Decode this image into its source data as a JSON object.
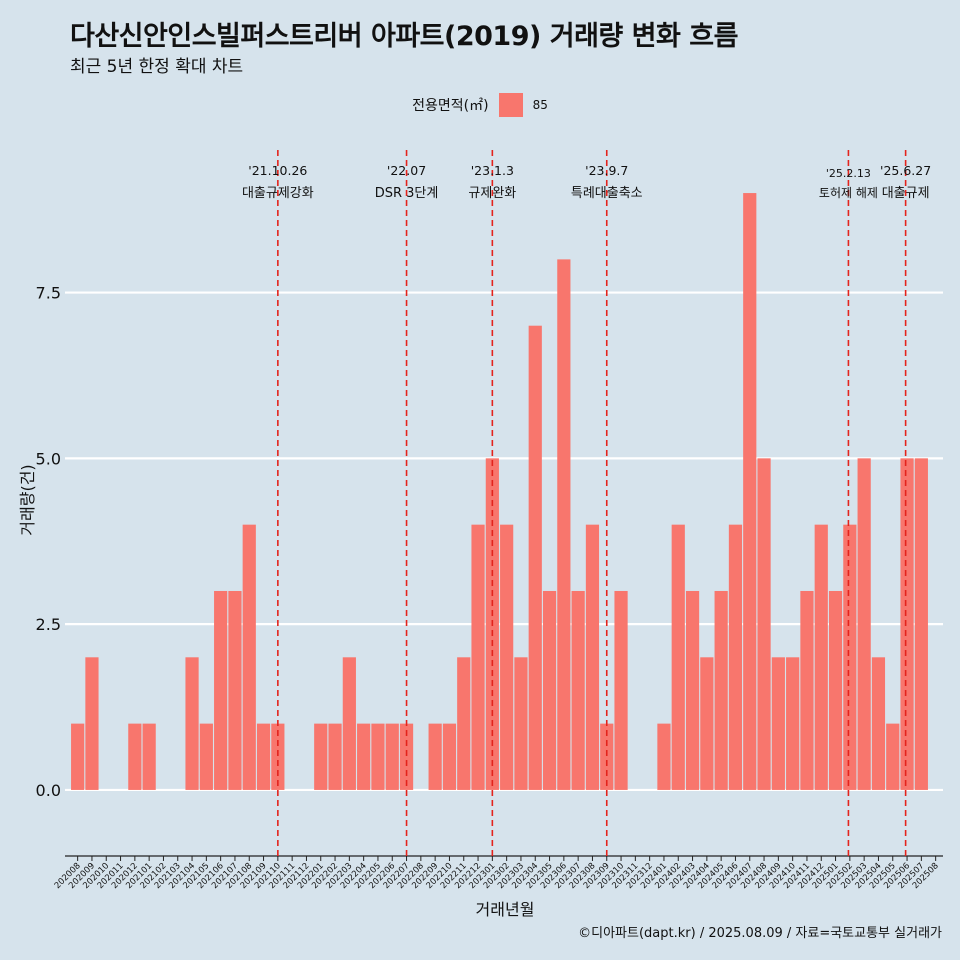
{
  "title": "다산신안인스빌퍼스트리버 아파트(2019) 거래량 변화 흐름",
  "subtitle": "최근 5년 한정 확대 차트",
  "caption": "©디아파트(dapt.kr) / 2025.08.09 / 자료=국토교통부 실거래가",
  "legend": {
    "title": "전용면적(㎡)",
    "item": "85"
  },
  "colors": {
    "bar": "#f8766d",
    "background": "#d6e3ec",
    "event_line": "#e3231c",
    "grid": "#ffffff"
  },
  "chart_data": {
    "type": "bar",
    "title": "다산신안인스빌퍼스트리버 아파트(2019) 거래량 변화 흐름",
    "xlabel": "거래년월",
    "ylabel": "거래량(건)",
    "ylim": [
      -0.8,
      9.8
    ],
    "yticks": [
      0.0,
      2.5,
      5.0,
      7.5
    ],
    "ytick_labels": [
      "0.0",
      "2.5",
      "5.0",
      "7.5"
    ],
    "grid": true,
    "legend_position": "top",
    "series": [
      {
        "name": "85",
        "color": "#f8766d"
      }
    ],
    "categories": [
      "202008",
      "202009",
      "202010",
      "202011",
      "202012",
      "202101",
      "202102",
      "202103",
      "202104",
      "202105",
      "202106",
      "202107",
      "202108",
      "202109",
      "202110",
      "202111",
      "202112",
      "202201",
      "202202",
      "202203",
      "202204",
      "202205",
      "202206",
      "202207",
      "202208",
      "202209",
      "202210",
      "202211",
      "202212",
      "202301",
      "202302",
      "202303",
      "202304",
      "202305",
      "202306",
      "202307",
      "202308",
      "202309",
      "202310",
      "202311",
      "202312",
      "202401",
      "202402",
      "202403",
      "202404",
      "202405",
      "202406",
      "202407",
      "202408",
      "202409",
      "202410",
      "202411",
      "202412",
      "202501",
      "202502",
      "202503",
      "202504",
      "202505",
      "202506",
      "202507",
      "202508"
    ],
    "values": [
      1,
      2,
      0,
      0,
      1,
      1,
      0,
      0,
      2,
      1,
      3,
      3,
      4,
      1,
      1,
      0,
      0,
      1,
      1,
      2,
      1,
      1,
      1,
      1,
      0,
      1,
      1,
      2,
      4,
      5,
      4,
      2,
      7,
      3,
      8,
      3,
      4,
      1,
      3,
      0,
      0,
      1,
      4,
      3,
      2,
      3,
      4,
      9,
      5,
      2,
      2,
      3,
      4,
      3,
      4,
      5,
      2,
      1,
      5,
      5,
      0
    ],
    "events": [
      {
        "date": "'21.10.26",
        "label": "대출규제강화",
        "pos": 14.5
      },
      {
        "date": "'22.07",
        "label": "DSR 3단계",
        "pos": 23.5
      },
      {
        "date": "'23.1.3",
        "label": "규제완화",
        "pos": 29.5
      },
      {
        "date": "'23.9.7",
        "label": "특례대출축소",
        "pos": 37.5
      },
      {
        "date": "'25.2.13",
        "label": "토허제 해제",
        "pos": 54.4
      },
      {
        "date": "'25.6.27",
        "label": "대출규제",
        "pos": 58.4
      }
    ]
  }
}
